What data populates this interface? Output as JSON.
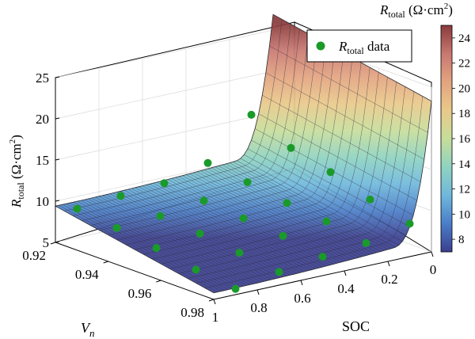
{
  "chart_data": {
    "type": "surface3d",
    "title": "",
    "zlabel": {
      "main": "R",
      "sub": "total",
      "unit_open": " (Ω·cm",
      "unit_sup": "2",
      "unit_close": ")"
    },
    "xlabel": {
      "main": "V",
      "sub": "n"
    },
    "ylabel": "SOC",
    "zlim": [
      5,
      25
    ],
    "xlim": [
      0.92,
      0.98
    ],
    "ylim": [
      1,
      0
    ],
    "z_ticks": [
      "5",
      "10",
      "15",
      "20",
      "25"
    ],
    "x_ticks": [
      "0.92",
      "0.94",
      "0.96",
      "0.98"
    ],
    "y_ticks": [
      "1",
      "0.8",
      "0.6",
      "0.4",
      "0.2",
      "0"
    ],
    "grid": true,
    "colormap": "parula",
    "surface_color": "#8892c8",
    "marker_color": "#1a9a2a",
    "colorbar": {
      "title": {
        "main": "R",
        "sub": "total",
        "unit_open": " (Ω·cm",
        "unit_sup": "2",
        "unit_close": ")"
      },
      "range": [
        7,
        25
      ],
      "ticks": [
        "8",
        "10",
        "12",
        "14",
        "16",
        "18",
        "20",
        "22",
        "24"
      ],
      "colors": [
        "#3b3f8f",
        "#4a7ec8",
        "#6fb8dc",
        "#8fd3c0",
        "#c7dd9a",
        "#e9c98a",
        "#e3a480",
        "#c87870",
        "#8a3a3a"
      ]
    },
    "legend": {
      "position": "top-right",
      "entry": {
        "main": "R",
        "sub": "total",
        "rest": " data"
      }
    },
    "series": [
      {
        "name": "R_total data",
        "points": [
          {
            "Vn": 0.92,
            "soc": 0.9,
            "r": 8.5
          },
          {
            "Vn": 0.92,
            "soc": 0.7,
            "r": 8.9
          },
          {
            "Vn": 0.92,
            "soc": 0.5,
            "r": 9.3
          },
          {
            "Vn": 0.92,
            "soc": 0.3,
            "r": 10.6
          },
          {
            "Vn": 0.92,
            "soc": 0.1,
            "r": 15.3
          },
          {
            "Vn": 0.935,
            "soc": 0.9,
            "r": 7.9
          },
          {
            "Vn": 0.935,
            "soc": 0.7,
            "r": 8.2
          },
          {
            "Vn": 0.935,
            "soc": 0.5,
            "r": 8.9
          },
          {
            "Vn": 0.935,
            "soc": 0.3,
            "r": 10.0
          },
          {
            "Vn": 0.935,
            "soc": 0.1,
            "r": 13.0
          },
          {
            "Vn": 0.95,
            "soc": 0.9,
            "r": 7.2
          },
          {
            "Vn": 0.95,
            "soc": 0.7,
            "r": 7.8
          },
          {
            "Vn": 0.95,
            "soc": 0.5,
            "r": 8.5
          },
          {
            "Vn": 0.95,
            "soc": 0.3,
            "r": 9.2
          },
          {
            "Vn": 0.95,
            "soc": 0.1,
            "r": 11.8
          },
          {
            "Vn": 0.965,
            "soc": 0.9,
            "r": 6.3
          },
          {
            "Vn": 0.965,
            "soc": 0.7,
            "r": 7.2
          },
          {
            "Vn": 0.965,
            "soc": 0.5,
            "r": 8.1
          },
          {
            "Vn": 0.965,
            "soc": 0.3,
            "r": 8.7
          },
          {
            "Vn": 0.965,
            "soc": 0.1,
            "r": 10.2
          },
          {
            "Vn": 0.98,
            "soc": 0.9,
            "r": 5.7
          },
          {
            "Vn": 0.98,
            "soc": 0.7,
            "r": 6.6
          },
          {
            "Vn": 0.98,
            "soc": 0.5,
            "r": 7.3
          },
          {
            "Vn": 0.98,
            "soc": 0.3,
            "r": 7.8
          },
          {
            "Vn": 0.98,
            "soc": 0.1,
            "r": 9.0
          }
        ]
      }
    ]
  }
}
